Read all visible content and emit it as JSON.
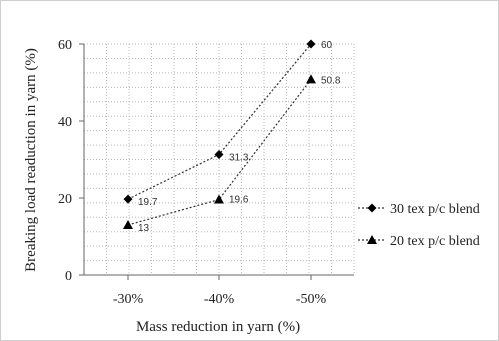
{
  "chart_data": {
    "type": "line",
    "title": "",
    "xlabel": "Mass reduction in yarn (%)",
    "ylabel": "Breaking load readuction in yarn (%)",
    "categories": [
      "-30%",
      "-40%",
      "-50%"
    ],
    "ylim": [
      0,
      60
    ],
    "yticks": [
      0,
      20,
      40,
      60
    ],
    "grid": true,
    "legend_position": "right",
    "series": [
      {
        "name": "30 tex p/c blend",
        "values": [
          19.7,
          31.3,
          60
        ],
        "labels": [
          "19.7",
          "31.3",
          "60"
        ],
        "marker": "diamond",
        "line_style": "dotted"
      },
      {
        "name": "20 tex p/c blend",
        "values": [
          13,
          19.6,
          50.8
        ],
        "labels": [
          "13",
          "19.6",
          "50.8"
        ],
        "marker": "triangle",
        "line_style": "dotted"
      }
    ]
  }
}
